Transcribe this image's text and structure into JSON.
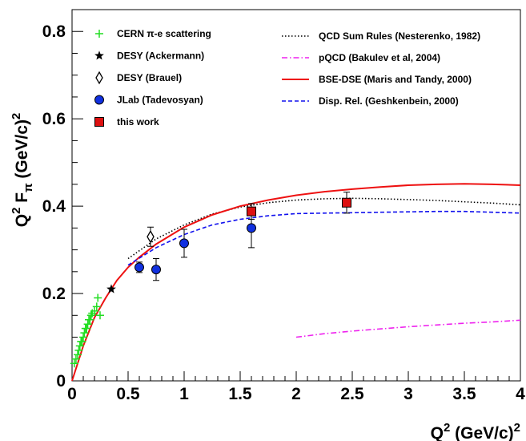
{
  "chart_data": {
    "type": "scatter",
    "xlabel": {
      "base": "Q",
      "sup": "2",
      "unit": " (GeV/c)",
      "unit_sup": "2"
    },
    "ylabel": {
      "base": "Q",
      "sup": "2",
      "mid": " F",
      "sub": "π",
      "unit": " (GeV/c)",
      "unit_sup": "2"
    },
    "xlim": [
      0,
      4
    ],
    "ylim": [
      0,
      0.85
    ],
    "x_ticks": [
      "0",
      "0.5",
      "1",
      "1.5",
      "2",
      "2.5",
      "3",
      "3.5",
      "4"
    ],
    "y_ticks": [
      "0",
      "0.2",
      "0.4",
      "0.6",
      "0.8"
    ],
    "grid": false,
    "legend_left_placement": "top-left",
    "legend_right_placement": "top-right",
    "data_series": [
      {
        "name": "CERN π-e scattering",
        "marker": "plus",
        "color": "#22dd22",
        "points": [
          [
            0.02,
            0.04
          ],
          [
            0.035,
            0.05
          ],
          [
            0.05,
            0.06
          ],
          [
            0.06,
            0.07
          ],
          [
            0.07,
            0.08
          ],
          [
            0.08,
            0.09
          ],
          [
            0.09,
            0.09
          ],
          [
            0.1,
            0.1
          ],
          [
            0.11,
            0.11
          ],
          [
            0.12,
            0.12
          ],
          [
            0.13,
            0.12
          ],
          [
            0.14,
            0.13
          ],
          [
            0.15,
            0.14
          ],
          [
            0.16,
            0.14
          ],
          [
            0.17,
            0.15
          ],
          [
            0.18,
            0.155
          ],
          [
            0.2,
            0.16
          ],
          [
            0.22,
            0.17
          ],
          [
            0.23,
            0.19
          ],
          [
            0.25,
            0.15
          ]
        ]
      },
      {
        "name": "DESY (Ackermann)",
        "marker": "star",
        "color": "#000000",
        "points": [
          [
            0.35,
            0.21
          ]
        ]
      },
      {
        "name": "DESY (Brauel)",
        "marker": "open-diamond",
        "color": "#000000",
        "points": [
          [
            0.7,
            0.33
          ]
        ],
        "errors": [
          0.022
        ]
      },
      {
        "name": "JLab (Tadevosyan)",
        "marker": "filled-circle",
        "color": "#1030e0",
        "points": [
          [
            0.6,
            0.26
          ],
          [
            0.75,
            0.255
          ],
          [
            1.0,
            0.315
          ],
          [
            1.6,
            0.35
          ]
        ],
        "errors": [
          0.012,
          0.025,
          0.032,
          0.045
        ]
      },
      {
        "name": "this work",
        "marker": "filled-square",
        "color": "#dd1111",
        "points": [
          [
            1.6,
            0.388
          ],
          [
            2.45,
            0.408
          ]
        ],
        "errors": [
          0.018,
          0.024
        ]
      }
    ],
    "curves": [
      {
        "name": "QCD Sum Rules (Nesterenko, 1982)",
        "style": "dotted",
        "color": "#000000",
        "x": [
          0.5,
          0.75,
          1,
          1.25,
          1.5,
          1.75,
          2,
          2.25,
          2.5,
          2.75,
          3,
          3.25,
          3.5,
          3.75,
          4
        ],
        "y": [
          0.28,
          0.325,
          0.357,
          0.382,
          0.398,
          0.408,
          0.414,
          0.417,
          0.418,
          0.417,
          0.415,
          0.413,
          0.41,
          0.407,
          0.403
        ]
      },
      {
        "name": "pQCD (Bakulev et al, 2004)",
        "style": "dash-dot",
        "color": "#ee22ee",
        "x": [
          2,
          2.25,
          2.5,
          2.75,
          3,
          3.25,
          3.5,
          3.75,
          4
        ],
        "y": [
          0.1,
          0.108,
          0.114,
          0.119,
          0.124,
          0.128,
          0.132,
          0.135,
          0.139
        ]
      },
      {
        "name": "BSE-DSE (Maris and Tandy, 2000)",
        "style": "solid",
        "color": "#ee1111",
        "x": [
          0,
          0.1,
          0.2,
          0.3,
          0.4,
          0.5,
          0.6,
          0.75,
          1,
          1.25,
          1.5,
          1.75,
          2,
          2.25,
          2.5,
          2.75,
          3,
          3.25,
          3.5,
          3.75,
          4
        ],
        "y": [
          0,
          0.08,
          0.145,
          0.19,
          0.23,
          0.26,
          0.283,
          0.313,
          0.352,
          0.38,
          0.4,
          0.414,
          0.425,
          0.433,
          0.439,
          0.444,
          0.448,
          0.45,
          0.451,
          0.45,
          0.448
        ]
      },
      {
        "name": "Disp. Rel. (Geshkenbein, 2000)",
        "style": "dashed",
        "color": "#1111ee",
        "x": [
          0.5,
          0.75,
          1,
          1.25,
          1.5,
          1.75,
          2,
          2.25,
          2.5,
          2.75,
          3,
          3.25,
          3.5,
          3.75,
          4
        ],
        "y": [
          0.265,
          0.305,
          0.335,
          0.357,
          0.37,
          0.378,
          0.383,
          0.384,
          0.385,
          0.386,
          0.387,
          0.388,
          0.388,
          0.386,
          0.384
        ]
      }
    ]
  }
}
